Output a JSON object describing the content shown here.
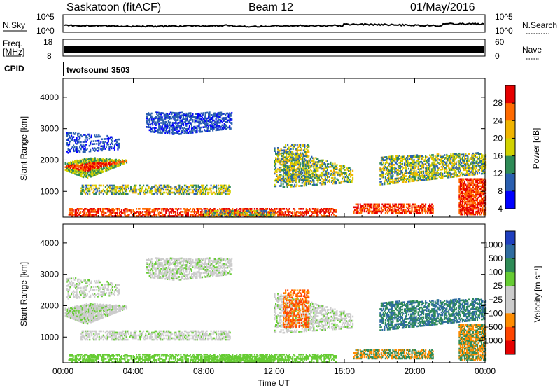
{
  "header": {
    "left": "Saskatoon (fitACF)",
    "center": "Beam 12",
    "right": "01/May/2016"
  },
  "strip": {
    "nsky_label": "N.Sky",
    "nsky_ticks": [
      "10^5",
      "10^0"
    ],
    "nsearch_label": "N.Search",
    "nsearch_ticks": [
      "10^5",
      "10^0"
    ],
    "freq_label": "Freq.",
    "freq_unit": "[MHz]",
    "freq_ticks": [
      "18",
      "8"
    ],
    "nave_label": "Nave",
    "nave_ticks": [
      "60",
      "0"
    ],
    "cpid_label": "CPID",
    "cpid_value": "twofsound 3503"
  },
  "chart_data": [
    {
      "type": "heatmap",
      "panel": "power",
      "ylabel": "Slant Range [km]",
      "xlabel": "",
      "yticks": [
        1000,
        2000,
        3000,
        4000
      ],
      "ylim": [
        180,
        4600
      ],
      "xlim": [
        0,
        24
      ],
      "xticks": [
        "00:00",
        "04:00",
        "08:00",
        "12:00",
        "16:00",
        "20:00",
        "00:00"
      ],
      "colorbar_label": "Power [dB]",
      "colorbar_ticks": [
        "28",
        "24",
        "20",
        "16",
        "12",
        "8",
        "4"
      ],
      "colorbar_colors": [
        "#e60000",
        "#ff6a00",
        "#f0b400",
        "#d2d200",
        "#2e8b57",
        "#2a5fb0",
        "#0000ff"
      ]
    },
    {
      "type": "heatmap",
      "panel": "velocity",
      "ylabel": "Slant Range [km]",
      "xlabel": "Time UT",
      "yticks": [
        1000,
        2000,
        3000,
        4000
      ],
      "ylim": [
        180,
        4600
      ],
      "xlim": [
        0,
        24
      ],
      "xticks": [
        "00:00",
        "04:00",
        "08:00",
        "12:00",
        "16:00",
        "20:00",
        "00:00"
      ],
      "colorbar_label": "Velocity [m s⁻¹]",
      "colorbar_ticks": [
        "1000",
        "500",
        "100",
        "25",
        "−25",
        "−100",
        "−500",
        "−1000"
      ],
      "colorbar_colors": [
        "#1f3fbf",
        "#2f6ca0",
        "#2e8b57",
        "#66cc33",
        "#cccccc",
        "#cccccc",
        "#ff8c00",
        "#ff4500",
        "#e60000"
      ]
    }
  ]
}
